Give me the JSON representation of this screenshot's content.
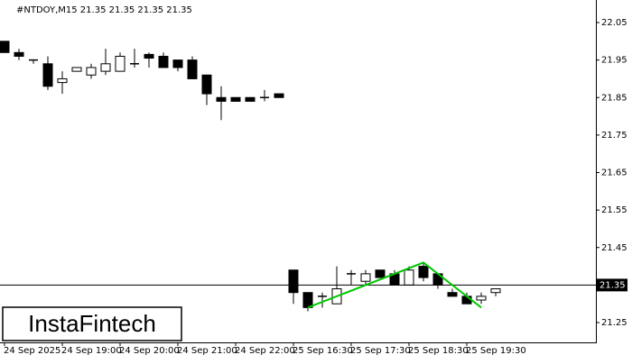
{
  "chart_data": {
    "type": "candlestick",
    "title": "#NTDOY,M15  21.35 21.35 21.35 21.35",
    "categories": [
      "24 Sep 2025",
      null,
      null,
      null,
      "24 Sep 19:00",
      null,
      null,
      null,
      "24 Sep 20:00",
      null,
      null,
      null,
      "24 Sep 21:00",
      null,
      null,
      null,
      "24 Sep 22:00",
      null,
      null,
      null,
      "25 Sep 16:30",
      null,
      null,
      null,
      "25 Sep 17:30",
      null,
      null,
      null,
      "25 Sep 18:30",
      null,
      null,
      null,
      "25 Sep 19:30",
      null,
      null
    ],
    "ohlc": [
      [
        22.0,
        22.0,
        21.97,
        21.97
      ],
      [
        21.97,
        21.98,
        21.95,
        21.96
      ],
      [
        21.95,
        21.95,
        21.94,
        21.95
      ],
      [
        21.94,
        21.96,
        21.87,
        21.88
      ],
      [
        21.89,
        21.92,
        21.86,
        21.9
      ],
      [
        21.92,
        21.93,
        21.92,
        21.93
      ],
      [
        21.91,
        21.94,
        21.9,
        21.93
      ],
      [
        21.92,
        21.98,
        21.91,
        21.94
      ],
      [
        21.92,
        21.97,
        21.92,
        21.96
      ],
      [
        21.94,
        21.98,
        21.93,
        21.94
      ],
      [
        21.965,
        21.97,
        21.93,
        21.955
      ],
      [
        21.96,
        21.97,
        21.93,
        21.93
      ],
      [
        21.95,
        21.95,
        21.92,
        21.93
      ],
      [
        21.95,
        21.96,
        21.9,
        21.9
      ],
      [
        21.91,
        21.91,
        21.83,
        21.86
      ],
      [
        21.85,
        21.88,
        21.79,
        21.84
      ],
      [
        21.85,
        21.85,
        21.84,
        21.84
      ],
      [
        21.85,
        21.85,
        21.84,
        21.84
      ],
      [
        21.85,
        21.87,
        21.84,
        21.85
      ],
      [
        21.86,
        21.86,
        21.85,
        21.85
      ],
      [
        21.39,
        21.39,
        21.3,
        21.33
      ],
      [
        21.33,
        21.33,
        21.28,
        21.29
      ],
      [
        21.32,
        21.33,
        21.29,
        21.32
      ],
      [
        21.3,
        21.4,
        21.3,
        21.34
      ],
      [
        21.38,
        21.39,
        21.35,
        21.38
      ],
      [
        21.36,
        21.39,
        21.35,
        21.38
      ],
      [
        21.39,
        21.39,
        21.37,
        21.37
      ],
      [
        21.38,
        21.39,
        21.35,
        21.35
      ],
      [
        21.35,
        21.4,
        21.35,
        21.39
      ],
      [
        21.4,
        21.41,
        21.36,
        21.37
      ],
      [
        21.38,
        21.38,
        21.34,
        21.35
      ],
      [
        21.33,
        21.34,
        21.32,
        21.32
      ],
      [
        21.32,
        21.33,
        21.3,
        21.3
      ],
      [
        21.31,
        21.33,
        21.3,
        21.32
      ],
      [
        21.33,
        21.34,
        21.32,
        21.34
      ]
    ],
    "ylim": [
      21.2,
      22.1
    ],
    "yticks": [
      22.05,
      21.95,
      21.85,
      21.75,
      21.65,
      21.55,
      21.45,
      21.25
    ],
    "last_price": 21.35,
    "pattern": {
      "color": "#00c800",
      "x": [
        21,
        29,
        33
      ],
      "y": [
        21.29,
        21.41,
        21.29
      ]
    },
    "watermark": "InstaFintech"
  }
}
